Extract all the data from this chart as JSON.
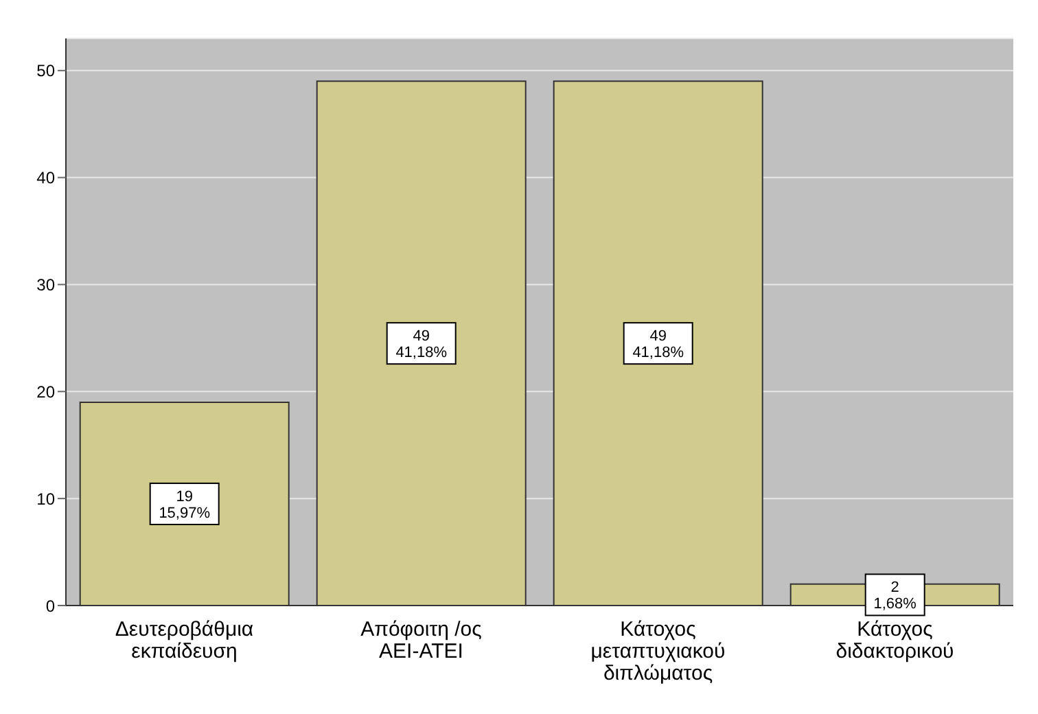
{
  "chart_data": {
    "type": "bar",
    "categories": [
      "Δευτεροβάθμια εκπαίδευση",
      "Απόφοιτη /ος ΑΕΙ-ΑΤΕΙ",
      "Κάτοχος μεταπτυχιακού διπλώματος",
      "Κάτοχος διδακτορικού"
    ],
    "values": [
      19,
      49,
      49,
      2
    ],
    "value_labels": [
      "19 15,97%",
      "49 41,18%",
      "49 41,18%",
      "2 1,68%"
    ],
    "color": "#d2cb8e",
    "ylim": [
      0,
      53
    ],
    "yticks": [
      0,
      10,
      20,
      30,
      40,
      50
    ],
    "grid": "y"
  }
}
